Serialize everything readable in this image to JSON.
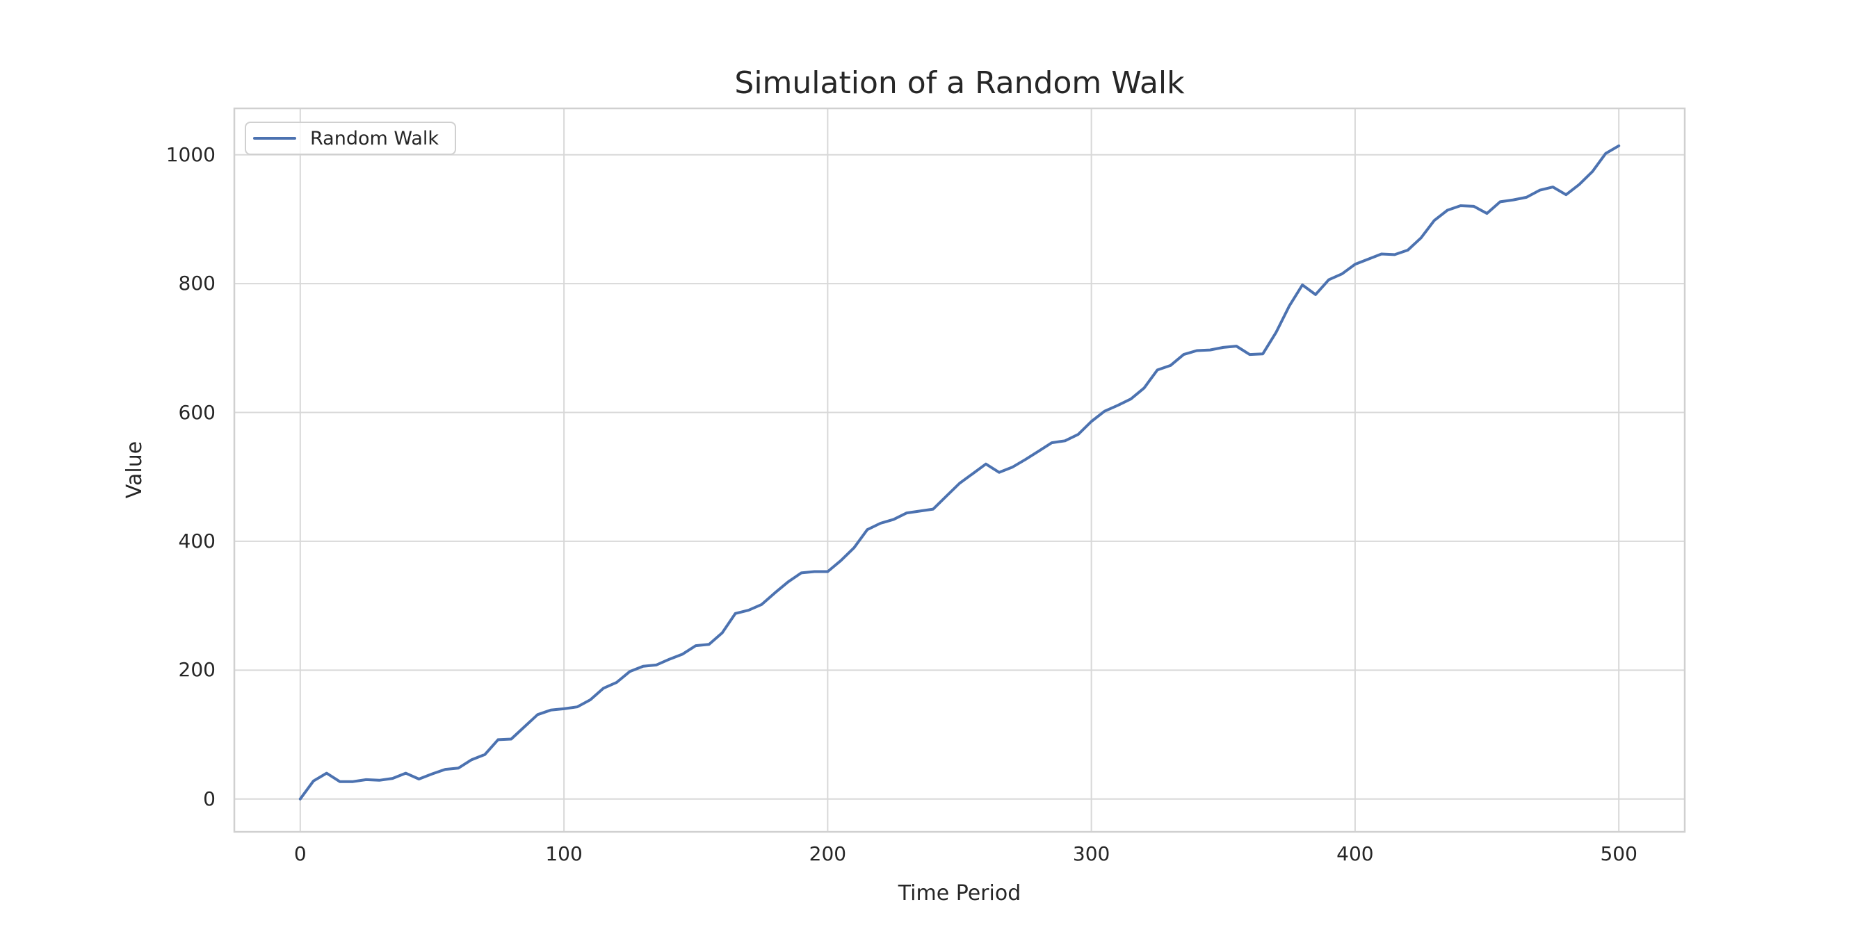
{
  "chart_data": {
    "type": "line",
    "title": "Simulation of a Random Walk",
    "xlabel": "Time Period",
    "ylabel": "Value",
    "legend": [
      "Random Walk"
    ],
    "legend_position": "upper left",
    "grid": true,
    "background_color": "#ffffff",
    "grid_color": "#d8d8d8",
    "axes_border_color": "#d0d0d0",
    "text_color": "#262626",
    "line_color": "#4c72b0",
    "xlim": [
      -25,
      525
    ],
    "ylim": [
      -51,
      1072
    ],
    "xticks": [
      0,
      100,
      200,
      300,
      400,
      500
    ],
    "yticks": [
      0,
      200,
      400,
      600,
      800,
      1000
    ],
    "series": [
      {
        "name": "Random Walk",
        "x": [
          0,
          5,
          10,
          15,
          20,
          25,
          30,
          35,
          40,
          45,
          50,
          55,
          60,
          65,
          70,
          75,
          80,
          85,
          90,
          95,
          100,
          105,
          110,
          115,
          120,
          125,
          130,
          135,
          140,
          145,
          150,
          155,
          160,
          165,
          170,
          175,
          180,
          185,
          190,
          195,
          200,
          205,
          210,
          215,
          220,
          225,
          230,
          235,
          240,
          245,
          250,
          255,
          260,
          265,
          270,
          275,
          280,
          285,
          290,
          295,
          300,
          305,
          310,
          315,
          320,
          325,
          330,
          335,
          340,
          345,
          350,
          355,
          360,
          365,
          370,
          375,
          380,
          385,
          390,
          395,
          400,
          405,
          410,
          415,
          420,
          425,
          430,
          435,
          440,
          445,
          450,
          455,
          460,
          465,
          470,
          475,
          480,
          485,
          490,
          495,
          500
        ],
        "y": [
          0,
          28,
          40,
          27,
          27,
          30,
          29,
          32,
          40,
          31,
          39,
          46,
          48,
          61,
          69,
          92,
          93,
          112,
          131,
          138,
          140,
          143,
          154,
          172,
          181,
          198,
          206,
          208,
          217,
          225,
          238,
          240,
          258,
          288,
          293,
          302,
          320,
          337,
          351,
          353,
          353,
          370,
          390,
          418,
          428,
          434,
          444,
          447,
          450,
          470,
          490,
          505,
          520,
          507,
          515,
          527,
          540,
          553,
          556,
          566,
          586,
          602,
          611,
          621,
          638,
          666,
          673,
          690,
          696,
          697,
          701,
          703,
          690,
          691,
          724,
          765,
          798,
          783,
          806,
          815,
          830,
          838,
          846,
          845,
          852,
          871,
          898,
          914,
          921,
          920,
          909,
          927,
          930,
          934,
          945,
          950,
          938,
          954,
          974,
          1002,
          1014
        ]
      }
    ]
  }
}
